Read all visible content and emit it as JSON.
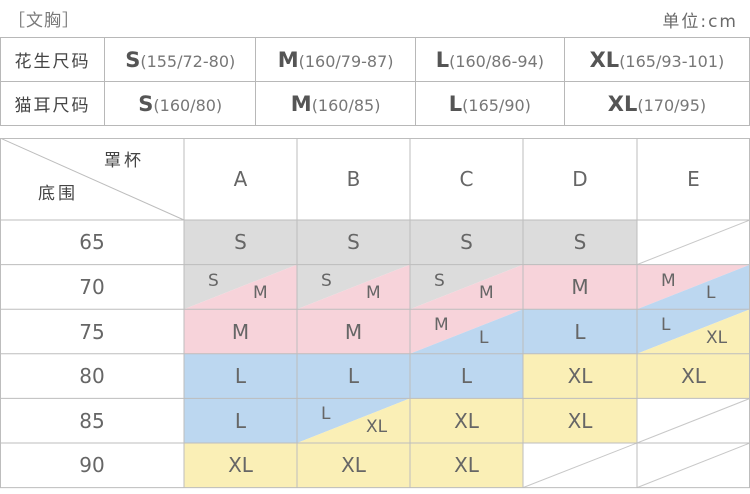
{
  "header": {
    "title": "［文胸］",
    "unit": "单位:cm"
  },
  "specs": [
    {
      "label": "花生尺码",
      "sizes": [
        {
          "size": "S",
          "spec": "(155/72-80)"
        },
        {
          "size": "M",
          "spec": "(160/79-87)"
        },
        {
          "size": "L",
          "spec": "(160/86-94)"
        },
        {
          "size": "XL",
          "spec": "(165/93-101)"
        }
      ]
    },
    {
      "label": "猫耳尺码",
      "sizes": [
        {
          "size": "S",
          "spec": "(160/80)"
        },
        {
          "size": "M",
          "spec": "(160/85)"
        },
        {
          "size": "L",
          "spec": "(165/90)"
        },
        {
          "size": "XL",
          "spec": "(170/95)"
        }
      ]
    }
  ],
  "grid": {
    "corner_cup": "罩杯",
    "corner_band": "底围",
    "cups": [
      "A",
      "B",
      "C",
      "D",
      "E"
    ],
    "bands": [
      "65",
      "70",
      "75",
      "80",
      "85",
      "90"
    ],
    "colors": {
      "S": "#dcdcdc",
      "M": "#f7d3da",
      "L": "#bcd7f0",
      "XL": "#faefb6"
    },
    "cells": [
      [
        {
          "a": "S"
        },
        {
          "a": "S"
        },
        {
          "a": "S"
        },
        {
          "a": "S"
        },
        {}
      ],
      [
        {
          "a": "S",
          "b": "M"
        },
        {
          "a": "S",
          "b": "M"
        },
        {
          "a": "S",
          "b": "M"
        },
        {
          "a": "M"
        },
        {
          "a": "M",
          "b": "L"
        }
      ],
      [
        {
          "a": "M"
        },
        {
          "a": "M"
        },
        {
          "a": "M",
          "b": "L"
        },
        {
          "a": "L"
        },
        {
          "a": "L",
          "b": "XL"
        }
      ],
      [
        {
          "a": "L"
        },
        {
          "a": "L"
        },
        {
          "a": "L"
        },
        {
          "a": "XL"
        },
        {
          "a": "XL"
        }
      ],
      [
        {
          "a": "L"
        },
        {
          "a": "L",
          "b": "XL"
        },
        {
          "a": "XL"
        },
        {
          "a": "XL"
        },
        {}
      ],
      [
        {
          "a": "XL"
        },
        {
          "a": "XL"
        },
        {
          "a": "XL"
        },
        {},
        {}
      ]
    ]
  }
}
